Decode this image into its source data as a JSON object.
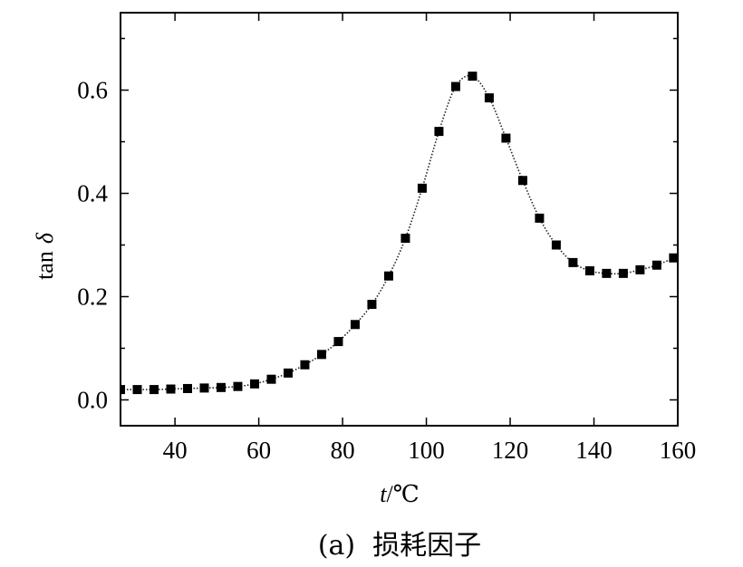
{
  "chart_data": {
    "type": "scatter",
    "xlabel_italic": "t",
    "xlabel_unit": "/℃",
    "ylabel_prefix": "tan",
    "ylabel_symbol": "δ",
    "caption": "(a)  损耗因子",
    "xlim": [
      27,
      160
    ],
    "ylim": [
      -0.05,
      0.75
    ],
    "xticks": [
      40,
      60,
      80,
      100,
      120,
      140,
      160
    ],
    "yticks": [
      0.0,
      0.2,
      0.4,
      0.6
    ],
    "ytick_labels": [
      "0.0",
      "0.2",
      "0.4",
      "0.6"
    ],
    "xtick_labels": [
      "40",
      "60",
      "80",
      "100",
      "120",
      "140",
      "160"
    ],
    "minor_ytick_step": 0.1,
    "grid": false,
    "marker": "square",
    "line": "dotted",
    "series": [
      {
        "x": [
          27,
          31,
          35,
          39,
          43,
          47,
          51,
          55,
          59,
          63,
          67,
          71,
          75,
          79,
          83,
          87,
          91,
          95,
          99,
          103,
          107,
          111,
          115,
          119,
          123,
          127,
          131,
          135,
          139,
          143,
          147,
          151,
          155,
          159
        ],
        "y": [
          0.02,
          0.02,
          0.02,
          0.021,
          0.022,
          0.023,
          0.024,
          0.026,
          0.031,
          0.04,
          0.052,
          0.068,
          0.088,
          0.113,
          0.146,
          0.185,
          0.24,
          0.313,
          0.41,
          0.52,
          0.607,
          0.627,
          0.585,
          0.507,
          0.425,
          0.352,
          0.3,
          0.266,
          0.25,
          0.245,
          0.245,
          0.252,
          0.261,
          0.275
        ]
      }
    ]
  }
}
